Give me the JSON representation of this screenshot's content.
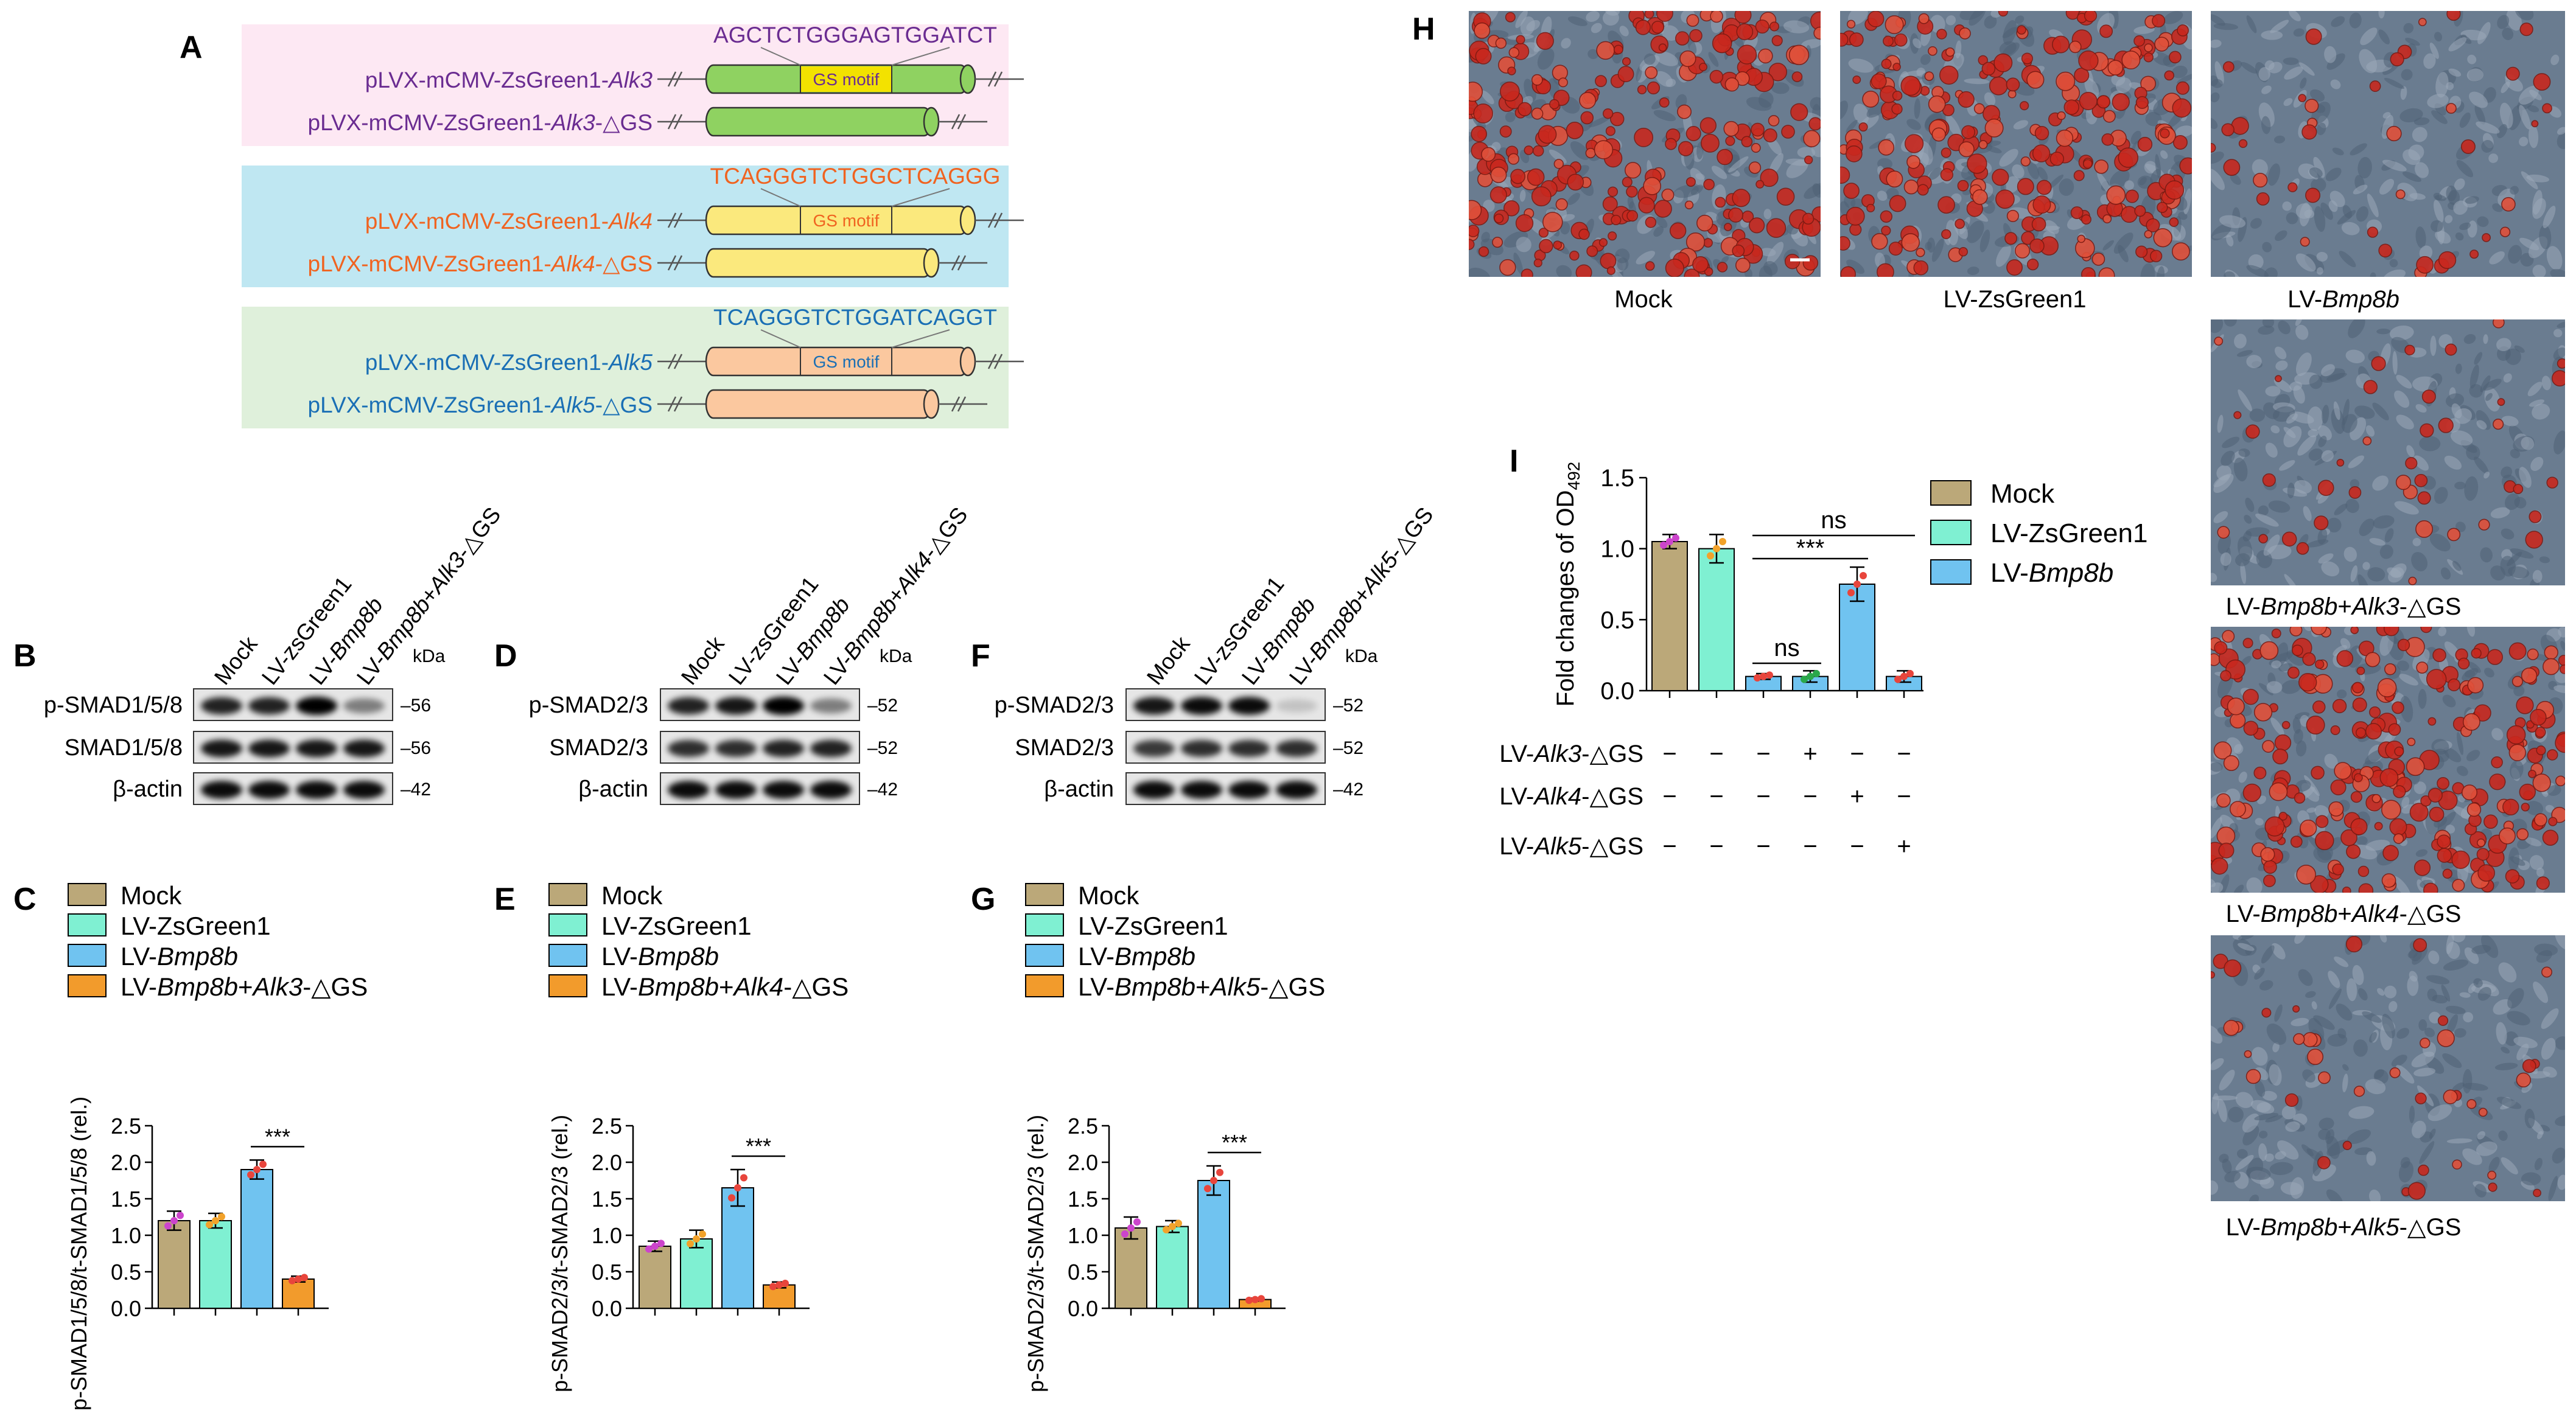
{
  "colors": {
    "mock": "#bba879",
    "zsgreen": "#7ff0d2",
    "bmp8b": "#70c3f0",
    "delta": "#f29b2c",
    "purple": "#6a2c91",
    "orange": "#f06320",
    "blue": "#1a6fb5",
    "pink_bg": "#fde8f3",
    "cyan_bg": "#bfe7f2",
    "green_bg": "#dff0db",
    "alk3_cyl": "#8fd261",
    "alk4_cyl": "#fbe97d",
    "alk5_cyl": "#fbc89f",
    "motif": "#f3e200"
  },
  "panel_A": {
    "letter": "A",
    "motif_label": "GS motif",
    "constructs": [
      {
        "prefix": "pLVX-mCMV-ZsGreen1-",
        "gene": "Alk3",
        "suffix": "",
        "sequence": "AGCTCTGGGAGTGGATCT"
      },
      {
        "prefix": "pLVX-mCMV-ZsGreen1-",
        "gene": "Alk3",
        "suffix": "-△GS"
      },
      {
        "prefix": "pLVX-mCMV-ZsGreen1-",
        "gene": "Alk4",
        "suffix": "",
        "sequence": "TCAGGGTCTGGCTCAGGG"
      },
      {
        "prefix": "pLVX-mCMV-ZsGreen1-",
        "gene": "Alk4",
        "suffix": "-△GS"
      },
      {
        "prefix": "pLVX-mCMV-ZsGreen1-",
        "gene": "Alk5",
        "suffix": "",
        "sequence": "TCAGGGTCTGGATCAGGT"
      },
      {
        "prefix": "pLVX-mCMV-ZsGreen1-",
        "gene": "Alk5",
        "suffix": "-△GS"
      }
    ]
  },
  "blots": [
    {
      "letter": "B",
      "lanes": [
        {
          "text": "Mock",
          "pre": "Mock",
          "it": "",
          "post": ""
        },
        {
          "text": "LV-zsGreen1",
          "pre": "LV-zsGreen1",
          "it": "",
          "post": ""
        },
        {
          "text": "LV-Bmp8b",
          "pre": "LV-",
          "it": "Bmp8b",
          "post": ""
        },
        {
          "text": "LV-Bmp8b+Alk3-△GS",
          "pre": "LV-",
          "it": "Bmp8b",
          "post": "+",
          "it2": "Alk3",
          "post2": "-△GS"
        }
      ],
      "kda": "kDa",
      "rows": [
        {
          "label": "p-SMAD1/5/8",
          "mw": "56"
        },
        {
          "label": "SMAD1/5/8",
          "mw": "56"
        },
        {
          "label": "β-actin",
          "mw": "42"
        }
      ]
    },
    {
      "letter": "D",
      "lanes": [
        {
          "pre": "Mock",
          "it": "",
          "post": ""
        },
        {
          "pre": "LV-zsGreen1",
          "it": "",
          "post": ""
        },
        {
          "pre": "LV-",
          "it": "Bmp8b",
          "post": ""
        },
        {
          "pre": "LV-",
          "it": "Bmp8b",
          "post": "+",
          "it2": "Alk4",
          "post2": "-△GS"
        }
      ],
      "kda": "kDa",
      "rows": [
        {
          "label": "p-SMAD2/3",
          "mw": "52"
        },
        {
          "label": "SMAD2/3",
          "mw": "52"
        },
        {
          "label": "β-actin",
          "mw": "42"
        }
      ]
    },
    {
      "letter": "F",
      "lanes": [
        {
          "pre": "Mock",
          "it": "",
          "post": ""
        },
        {
          "pre": "LV-zsGreen1",
          "it": "",
          "post": ""
        },
        {
          "pre": "LV-",
          "it": "Bmp8b",
          "post": ""
        },
        {
          "pre": "LV-",
          "it": "Bmp8b",
          "post": "+",
          "it2": "Alk5",
          "post2": "-△GS"
        }
      ],
      "kda": "kDa",
      "rows": [
        {
          "label": "p-SMAD2/3",
          "mw": "52"
        },
        {
          "label": "SMAD2/3",
          "mw": "52"
        },
        {
          "label": "β-actin",
          "mw": "42"
        }
      ]
    }
  ],
  "chart_data": [
    {
      "panel": "C",
      "type": "bar",
      "legend": [
        {
          "pre": "Mock",
          "it": "",
          "post": ""
        },
        {
          "pre": "LV-ZsGreen1",
          "it": "",
          "post": ""
        },
        {
          "pre": "LV-",
          "it": "Bmp8b",
          "post": ""
        },
        {
          "pre": "LV-",
          "it": "Bmp8b",
          "post": "+",
          "it2": "Alk3",
          "post2": "-△GS"
        }
      ],
      "categories": [
        "Mock",
        "LV-ZsGreen1",
        "LV-Bmp8b",
        "LV-Bmp8b+Alk3-△GS"
      ],
      "values": [
        1.2,
        1.2,
        1.9,
        0.4
      ],
      "errors": [
        0.13,
        0.1,
        0.13,
        0.04
      ],
      "ylabel": "p-SMAD1/5/8/t-SMAD1/5/8 (rel.)",
      "ylim": [
        0,
        2.5
      ],
      "yticks": [
        "0.0",
        "0.5",
        "1.0",
        "1.5",
        "2.0",
        "2.5"
      ],
      "significance": "***"
    },
    {
      "panel": "E",
      "type": "bar",
      "legend": [
        {
          "pre": "Mock",
          "it": "",
          "post": ""
        },
        {
          "pre": "LV-ZsGreen1",
          "it": "",
          "post": ""
        },
        {
          "pre": "LV-",
          "it": "Bmp8b",
          "post": ""
        },
        {
          "pre": "LV-",
          "it": "Bmp8b",
          "post": "+",
          "it2": "Alk4",
          "post2": "-△GS"
        }
      ],
      "categories": [
        "Mock",
        "LV-ZsGreen1",
        "LV-Bmp8b",
        "LV-Bmp8b+Alk4-△GS"
      ],
      "values": [
        0.85,
        0.95,
        1.65,
        0.32
      ],
      "errors": [
        0.07,
        0.12,
        0.25,
        0.04
      ],
      "ylabel": "p-SMAD2/3/t-SMAD2/3 (rel.)",
      "ylim": [
        0,
        2.5
      ],
      "yticks": [
        "0.0",
        "0.5",
        "1.0",
        "1.5",
        "2.0",
        "2.5"
      ],
      "significance": "***"
    },
    {
      "panel": "G",
      "type": "bar",
      "legend": [
        {
          "pre": "Mock",
          "it": "",
          "post": ""
        },
        {
          "pre": "LV-ZsGreen1",
          "it": "",
          "post": ""
        },
        {
          "pre": "LV-",
          "it": "Bmp8b",
          "post": ""
        },
        {
          "pre": "LV-",
          "it": "Bmp8b",
          "post": "+",
          "it2": "Alk5",
          "post2": "-△GS"
        }
      ],
      "categories": [
        "Mock",
        "LV-ZsGreen1",
        "LV-Bmp8b",
        "LV-Bmp8b+Alk5-△GS"
      ],
      "values": [
        1.1,
        1.12,
        1.75,
        0.12
      ],
      "errors": [
        0.15,
        0.08,
        0.2,
        0.02
      ],
      "ylabel": "p-SMAD2/3/t-SMAD2/3 (rel.)",
      "ylim": [
        0,
        2.5
      ],
      "yticks": [
        "0.0",
        "0.5",
        "1.0",
        "1.5",
        "2.0",
        "2.5"
      ],
      "significance": "***"
    },
    {
      "panel": "I",
      "type": "bar",
      "legend": [
        {
          "pre": "Mock",
          "it": "",
          "post": ""
        },
        {
          "pre": "LV-ZsGreen1",
          "it": "",
          "post": ""
        },
        {
          "pre": "LV-",
          "it": "Bmp8b",
          "post": ""
        }
      ],
      "colors": [
        "#bba879",
        "#7ff0d2",
        "#70c3f0",
        "#70c3f0",
        "#70c3f0",
        "#70c3f0"
      ],
      "values": [
        1.05,
        1.0,
        0.1,
        0.1,
        0.75,
        0.1
      ],
      "errors": [
        0.05,
        0.1,
        0.02,
        0.04,
        0.12,
        0.04
      ],
      "ylabel_main": "Fold changes of OD",
      "ylabel_sub": "492",
      "ylim": [
        0,
        1.5
      ],
      "yticks": [
        "0.0",
        "0.5",
        "1.0",
        "1.5"
      ],
      "treatment_rows": [
        {
          "pre": "LV-",
          "it": "Alk3",
          "post": "-△GS",
          "signs": [
            "−",
            "−",
            "−",
            "+",
            "−",
            "−"
          ]
        },
        {
          "pre": "LV-",
          "it": "Alk4",
          "post": "-△GS",
          "signs": [
            "−",
            "−",
            "−",
            "−",
            "+",
            "−"
          ]
        },
        {
          "pre": "LV-",
          "it": "Alk5",
          "post": "-△GS",
          "signs": [
            "−",
            "−",
            "−",
            "−",
            "−",
            "+"
          ]
        }
      ],
      "comparisons": [
        {
          "label": "ns",
          "from": 2,
          "to": 5
        },
        {
          "label": "***",
          "from": 2,
          "to": 4
        },
        {
          "label": "ns",
          "from": 2,
          "to": 3
        }
      ]
    }
  ],
  "panel_H": {
    "letter": "H",
    "images": [
      {
        "pre": "Mock",
        "it": "",
        "post": "",
        "stain": "high"
      },
      {
        "pre": "LV-ZsGreen1",
        "it": "",
        "post": "",
        "stain": "high"
      },
      {
        "pre": "LV-",
        "it": "Bmp8b",
        "post": "",
        "stain": "low"
      },
      {
        "pre": "LV-",
        "it": "Bmp8b",
        "post": "+",
        "it2": "Alk3",
        "post2": "-△GS",
        "stain": "low"
      },
      {
        "pre": "LV-",
        "it": "Bmp8b",
        "post": "+",
        "it2": "Alk4",
        "post2": "-△GS",
        "stain": "high"
      },
      {
        "pre": "LV-",
        "it": "Bmp8b",
        "post": "+",
        "it2": "Alk5",
        "post2": "-△GS",
        "stain": "low"
      }
    ]
  },
  "panel_I_letter": "I"
}
